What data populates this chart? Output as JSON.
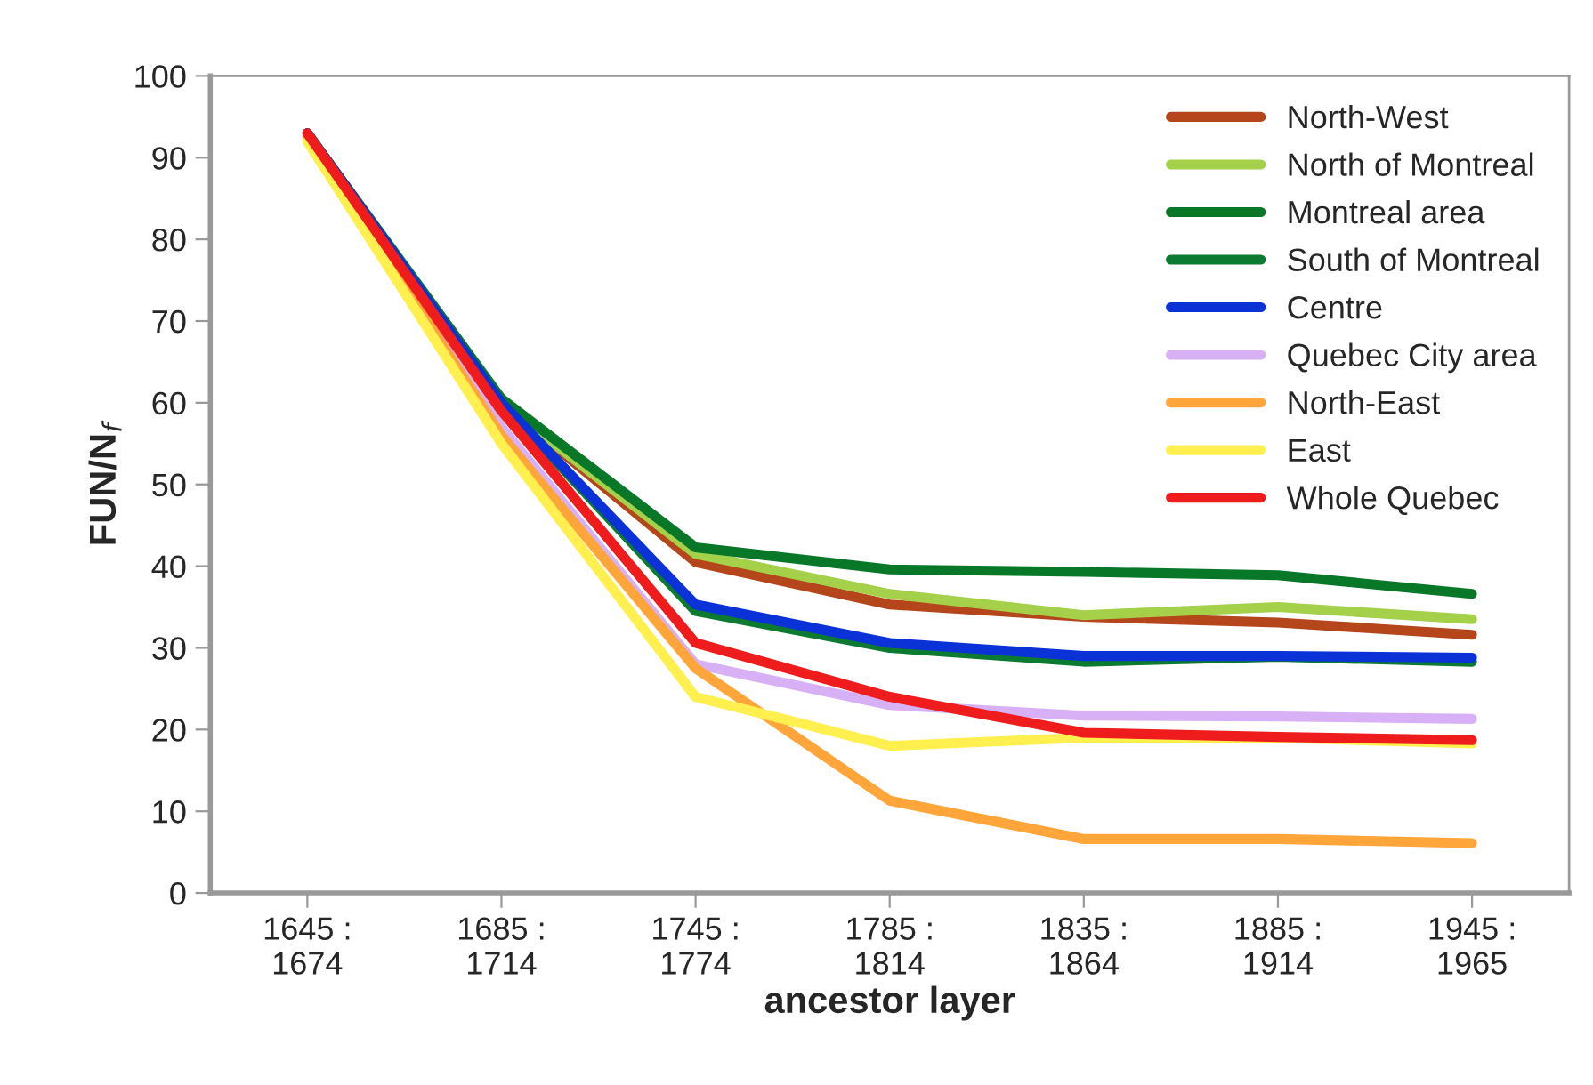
{
  "chart_data": {
    "type": "line",
    "xlabel": "ancestor layer",
    "ylabel": "FUN/N$_{f}$",
    "categories": [
      "1645 :\n1674",
      "1685 :\n1714",
      "1745 :\n1774",
      "1785 :\n1814",
      "1835 :\n1864",
      "1885 :\n1914",
      "1945 :\n1965"
    ],
    "ylim": [
      0,
      100
    ],
    "yticks": [
      0,
      10,
      20,
      30,
      40,
      50,
      60,
      70,
      80,
      90,
      100
    ],
    "grid": false,
    "legend": "top right",
    "marker": "none",
    "line_style": "solid",
    "series": [
      {
        "name": "North-West",
        "color": "#b5451b",
        "values": [
          93,
          60,
          40.5,
          35.3,
          33.8,
          33.1,
          31.6
        ]
      },
      {
        "name": "North of Montreal",
        "color": "#a4d04a",
        "values": [
          93,
          60,
          41.5,
          36.6,
          34,
          35,
          33.5
        ]
      },
      {
        "name": "Montreal area",
        "color": "#087828",
        "values": [
          93,
          60.5,
          42.3,
          39.6,
          39.3,
          38.9,
          36.6
        ]
      },
      {
        "name": "South of Montreal",
        "color": "#0c7a30",
        "values": [
          93,
          60,
          34.5,
          30,
          28.3,
          28.9,
          28.3
        ]
      },
      {
        "name": "Centre",
        "color": "#0a32d6",
        "values": [
          93,
          60,
          35.3,
          30.6,
          29,
          29,
          28.8
        ]
      },
      {
        "name": "Quebec City area",
        "color": "#d8b0f5",
        "values": [
          92.5,
          57,
          28,
          23,
          21.7,
          21.6,
          21.3
        ]
      },
      {
        "name": "North-East",
        "color": "#ffa53a",
        "values": [
          92.5,
          56,
          27.5,
          11.3,
          6.6,
          6.6,
          6.1
        ]
      },
      {
        "name": "East",
        "color": "#fff050",
        "values": [
          92,
          55,
          24,
          18,
          19,
          19,
          18.3
        ]
      },
      {
        "name": "Whole Quebec",
        "color": "#ee1c1c",
        "values": [
          93,
          59,
          30.6,
          24,
          19.6,
          19.1,
          18.7
        ]
      }
    ]
  }
}
